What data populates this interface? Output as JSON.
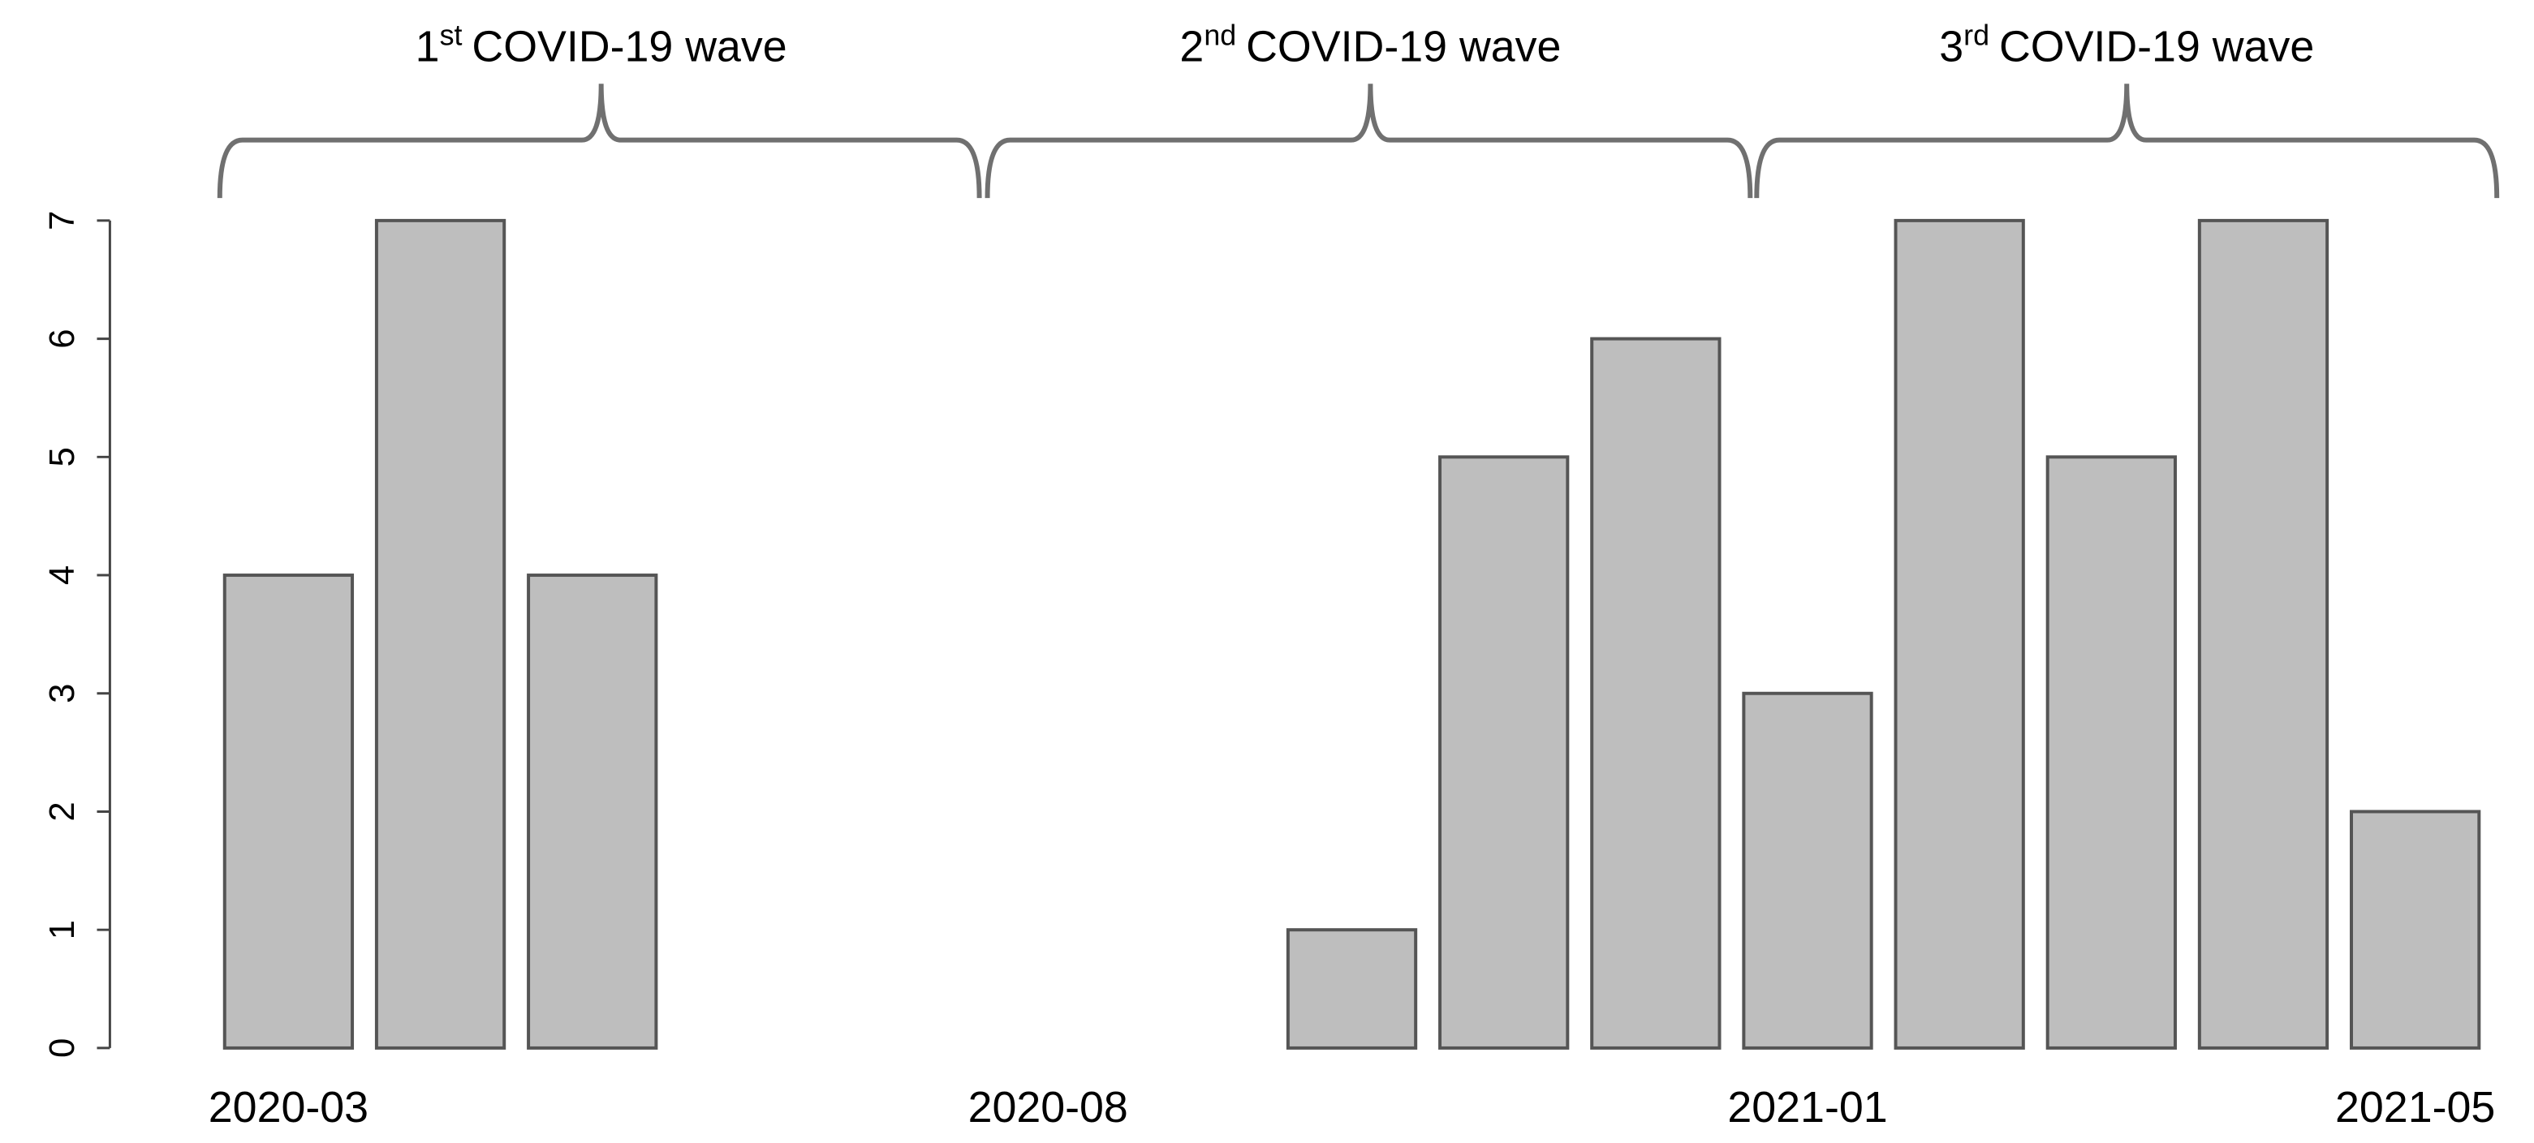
{
  "chart_data": {
    "type": "bar",
    "categories": [
      "2020-03",
      null,
      null,
      null,
      null,
      "2020-08",
      null,
      null,
      null,
      null,
      "2021-01",
      null,
      null,
      null,
      "2021-05"
    ],
    "values": [
      4,
      7,
      4,
      0,
      0,
      0,
      0,
      1,
      5,
      6,
      3,
      7,
      5,
      7,
      2
    ],
    "color": "#bebebe",
    "ylim": [
      0,
      7
    ],
    "yticks": [
      0,
      1,
      2,
      3,
      4,
      5,
      6,
      7
    ],
    "annotations": [
      {
        "number": "1",
        "suffix": "st",
        "text": "COVID-19 wave"
      },
      {
        "number": "2",
        "suffix": "nd",
        "text": "COVID-19 wave"
      },
      {
        "number": "3",
        "suffix": "rd",
        "text": "COVID-19 wave"
      }
    ]
  }
}
